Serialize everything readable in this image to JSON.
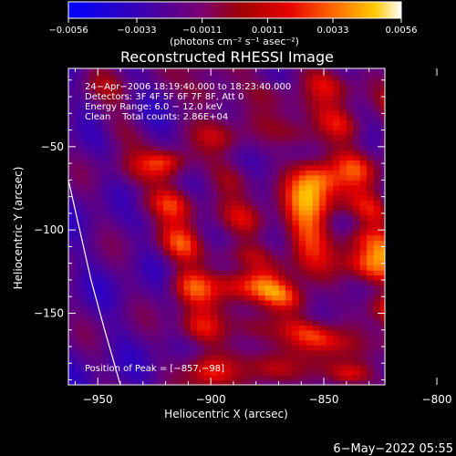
{
  "chart_data": {
    "type": "heatmap",
    "title": "Reconstructed RHESSI Image",
    "colorbar": {
      "ticks": [
        "-0.0056",
        "-0.0033",
        "-0.0011",
        "0.0011",
        "0.0033",
        "0.0056"
      ],
      "tick_values": [
        -0.0056,
        -0.0033,
        -0.0011,
        0.0011,
        0.0033,
        0.0056
      ],
      "range": [
        -0.0056,
        0.0056
      ],
      "units_label": "(photons cm⁻² s⁻¹ asec⁻²)"
    },
    "xlabel": "Heliocentric X (arcsec)",
    "ylabel": "Heliocentric Y (arcsec)",
    "xlim": [
      -963,
      -823
    ],
    "ylim": [
      -193,
      -3
    ],
    "xticks": [
      {
        "v": -950,
        "label": "−950"
      },
      {
        "v": -900,
        "label": "−900"
      },
      {
        "v": -850,
        "label": "−850"
      },
      {
        "v": -800,
        "label": "−800"
      }
    ],
    "yticks": [
      {
        "v": -50,
        "label": "−50"
      },
      {
        "v": -100,
        "label": "−100"
      },
      {
        "v": -150,
        "label": "−150"
      }
    ],
    "annotations": [
      "24−Apr−2006 18:19:40.000 to 18:23:40.000",
      "Detectors: 3F 4F 5F 6F 7F 8F, Att 0",
      "Energy Range: 6.0 − 12.0 keV",
      "Clean    Total counts: 2.86E+04"
    ],
    "peak_label": "Position of Peak = [−857,−98]",
    "peak": {
      "x": -857,
      "y": -98,
      "value": 0.0056
    },
    "limb": [
      [
        -963,
        -70
      ],
      [
        -958,
        -100
      ],
      [
        -953,
        -130
      ],
      [
        -947,
        -160
      ],
      [
        -940,
        -193
      ]
    ],
    "bands": [
      {
        "x": [
          -950,
          -930
        ],
        "y": [
          -5,
          -80
        ],
        "amp": 0.0012
      },
      {
        "x": [
          -920,
          -900
        ],
        "y": [
          -60,
          -190
        ],
        "amp": 0.0034
      },
      {
        "x": [
          -905,
          -880
        ],
        "y": [
          -5,
          -110
        ],
        "amp": 0.0022
      },
      {
        "x": [
          -895,
          -870
        ],
        "y": [
          -120,
          -190
        ],
        "amp": 0.0026
      },
      {
        "x": [
          -880,
          -845
        ],
        "y": [
          -5,
          -80
        ],
        "amp": 0.002
      },
      {
        "x": [
          -875,
          -840
        ],
        "y": [
          -130,
          -185
        ],
        "amp": 0.004
      },
      {
        "x": [
          -850,
          -820
        ],
        "y": [
          -5,
          -120
        ],
        "amp": 0.003
      },
      {
        "x": [
          -835,
          -805
        ],
        "y": [
          -110,
          -190
        ],
        "amp": 0.0036
      },
      {
        "x": [
          -815,
          -795
        ],
        "y": [
          -20,
          -150
        ],
        "amp": 0.003
      },
      {
        "x": [
          -800,
          -790
        ],
        "y": [
          -60,
          -110
        ],
        "amp": 0.0032
      },
      {
        "x": [
          -790,
          -770
        ],
        "y": [
          -5,
          -190
        ],
        "amp": 0.0032
      },
      {
        "x": [
          -773,
          -760
        ],
        "y": [
          -30,
          -150
        ],
        "amp": 0.0036
      }
    ],
    "grid": false
  },
  "footer": {
    "timestamp": "6−May−2022 05:55"
  },
  "colors": {
    "background": "#000000",
    "axes": "#ffffff",
    "colormap": [
      "#0000ff",
      "#2a00c8",
      "#6a0090",
      "#9a0000",
      "#e60000",
      "#ff6a00",
      "#ffc800",
      "#ffffff"
    ]
  }
}
